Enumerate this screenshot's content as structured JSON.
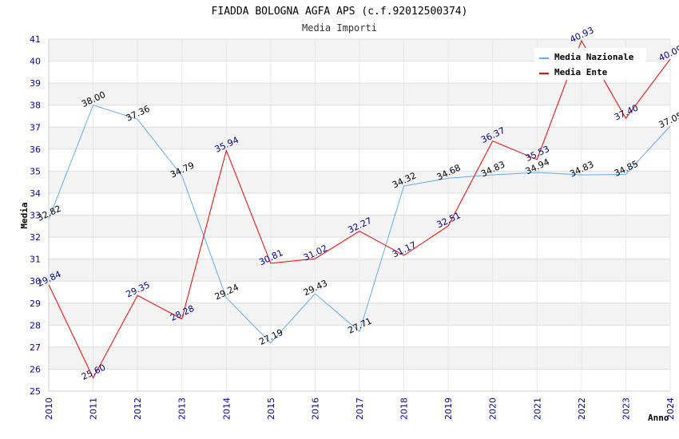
{
  "chart_data": {
    "type": "line",
    "title": "FIADDA BOLOGNA AGFA APS (c.f.92012500374)",
    "subtitle": "Media Importi",
    "xlabel": "Anno",
    "ylabel": "Media",
    "ylim": [
      25,
      41
    ],
    "yticks": [
      "25",
      "26",
      "27",
      "28",
      "29",
      "30",
      "31",
      "32",
      "33",
      "34",
      "35",
      "36",
      "37",
      "38",
      "39",
      "40",
      "41"
    ],
    "categories": [
      "2010",
      "2011",
      "2012",
      "2013",
      "2014",
      "2015",
      "2016",
      "2017",
      "2018",
      "2019",
      "2020",
      "2021",
      "2022",
      "2023",
      "2024"
    ],
    "series": [
      {
        "name": "Media Nazionale",
        "color": "#66aaee",
        "values": [
          32.82,
          38.0,
          37.36,
          34.79,
          29.24,
          27.19,
          29.43,
          27.71,
          34.32,
          34.68,
          34.83,
          34.94,
          34.83,
          34.85,
          37.05
        ],
        "labels": [
          "32.82",
          "38.00",
          "37.36",
          "34.79",
          "29.24",
          "27.19",
          "29.43",
          "27.71",
          "34.32",
          "34.68",
          "34.83",
          "34.94",
          "34.83",
          "34.85",
          "37.05"
        ]
      },
      {
        "name": "Media Ente",
        "color": "#ee0000",
        "values": [
          29.84,
          25.6,
          29.35,
          28.28,
          35.94,
          30.81,
          31.02,
          32.27,
          31.17,
          32.51,
          36.37,
          35.53,
          40.93,
          37.4,
          40.09
        ],
        "labels": [
          "29.84",
          "25.60",
          "29.35",
          "28.28",
          "35.94",
          "30.81",
          "31.02",
          "32.27",
          "31.17",
          "32.51",
          "36.37",
          "35.53",
          "40.93",
          "37.40",
          "40.09"
        ]
      }
    ],
    "legend": "top-right",
    "grid": true
  }
}
